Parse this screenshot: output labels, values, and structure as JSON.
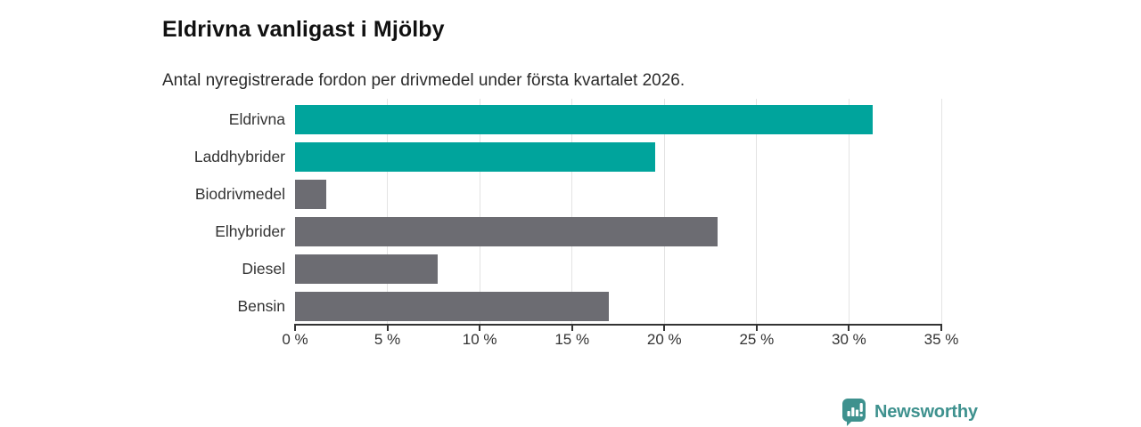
{
  "header": {
    "title": "Eldrivna vanligast i Mjölby",
    "subtitle": "Antal nyregistrerade fordon per drivmedel under första kvartalet 2026."
  },
  "chart_data": {
    "type": "bar",
    "orientation": "horizontal",
    "title": "Eldrivna vanligast i Mjölby",
    "subtitle": "Antal nyregistrerade fordon per drivmedel under första kvartalet 2026.",
    "categories": [
      "Eldrivna",
      "Laddhybrider",
      "Biodrivmedel",
      "Elhybrider",
      "Diesel",
      "Bensin"
    ],
    "values": [
      31.3,
      19.5,
      1.7,
      22.9,
      7.7,
      17.0
    ],
    "unit": "%",
    "bar_colors": [
      "#00a49c",
      "#00a49c",
      "#6c6c72",
      "#6c6c72",
      "#6c6c72",
      "#6c6c72"
    ],
    "xlim": [
      0,
      35
    ],
    "x_ticks": [
      0,
      5,
      10,
      15,
      20,
      25,
      30,
      35
    ],
    "x_tick_labels": [
      "0 %",
      "5 %",
      "10 %",
      "15 %",
      "20 %",
      "25 %",
      "30 %",
      "35 %"
    ],
    "grid": true,
    "legend": "none",
    "xlabel": "",
    "ylabel": ""
  },
  "colors": {
    "accent": "#00a49c",
    "muted_bar": "#6c6c72",
    "gridline": "#e3e3e3",
    "axis": "#333333",
    "title_text": "#111111",
    "body_text": "#2b2b2b",
    "brand": "#3e918e"
  },
  "footer": {
    "brand": "Newsworthy",
    "logo_icon": "speech-bubble-bar-chart"
  }
}
